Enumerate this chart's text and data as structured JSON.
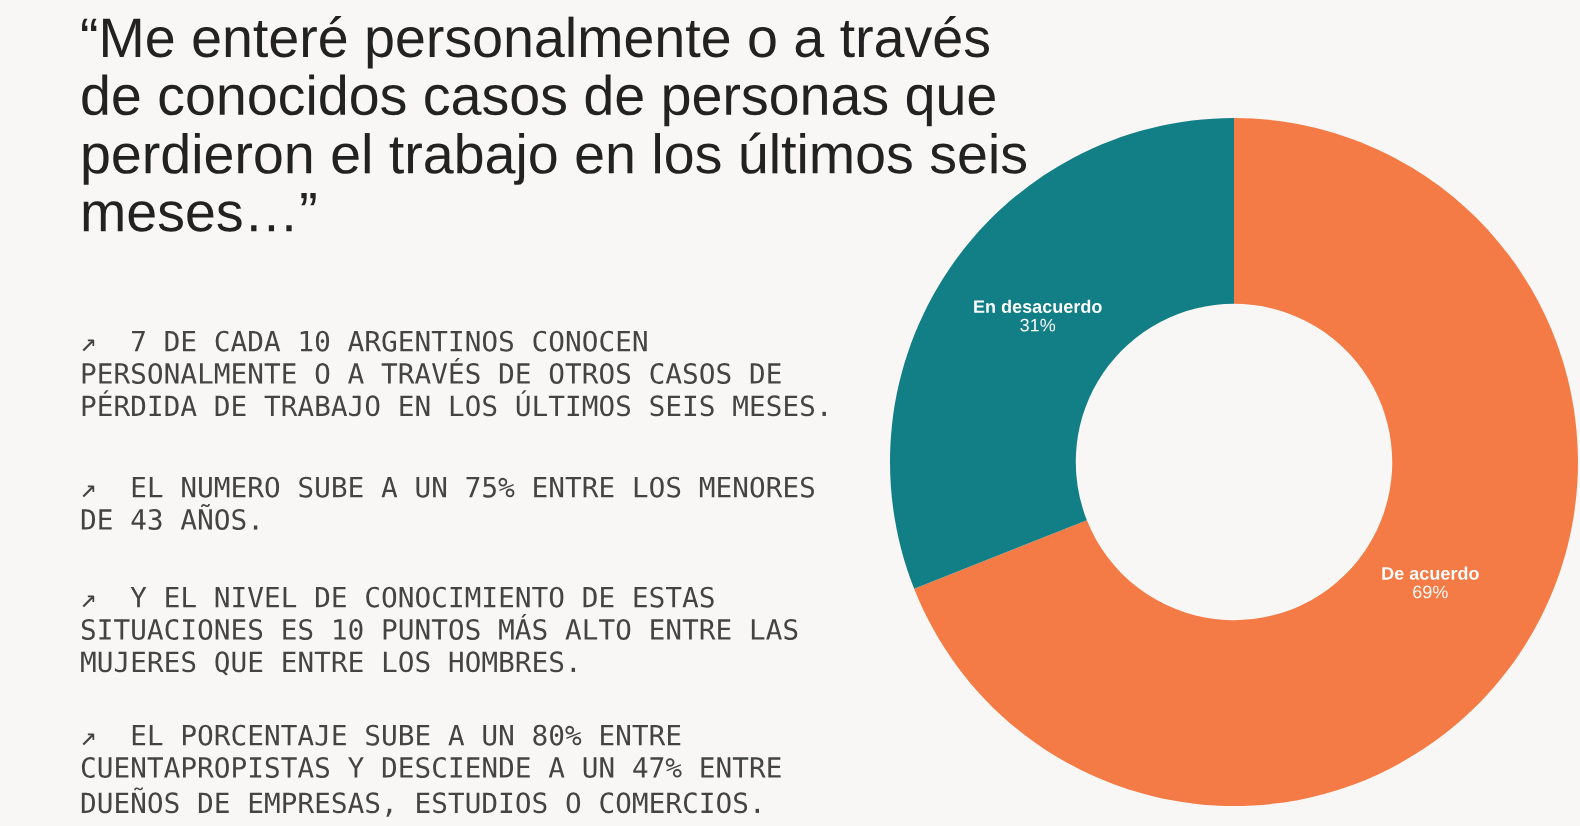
{
  "chart_data": {
    "type": "donut",
    "title": "“Me enteré personalmente o a través\nde conocidos casos de personas que\nperdieron el trabajo en los últimos seis\nmeses…”",
    "categories": [
      "De acuerdo",
      "En desacuerdo"
    ],
    "values": [
      69,
      31
    ],
    "colors": [
      "#f47b45",
      "#117f85"
    ],
    "value_labels": [
      "69%",
      "31%"
    ],
    "legend": false,
    "annotations": [
      "↗  7 DE CADA 10 ARGENTINOS CONOCEN\nPERSONALMENTE O A TRAVÉS DE OTROS CASOS DE\nPÉRDIDA DE TRABAJO EN LOS ÚLTIMOS SEIS MESES.",
      "↗  EL NUMERO SUBE A UN 75% ENTRE LOS MENORES\nDE 43 AÑOS.",
      "↗  Y EL NIVEL DE CONOCIMIENTO DE ESTAS\nSITUACIONES ES 10 PUNTOS MÁS ALTO ENTRE LAS\nMUJERES QUE ENTRE LOS HOMBRES.",
      "↗  EL PORCENTAJE SUBE A UN 80% ENTRE\nCUENTAPROPISTAS Y DESCIENDE A UN 47% ENTRE\nDUEÑOS DE EMPRESAS, ESTUDIOS O COMERCIOS."
    ]
  }
}
